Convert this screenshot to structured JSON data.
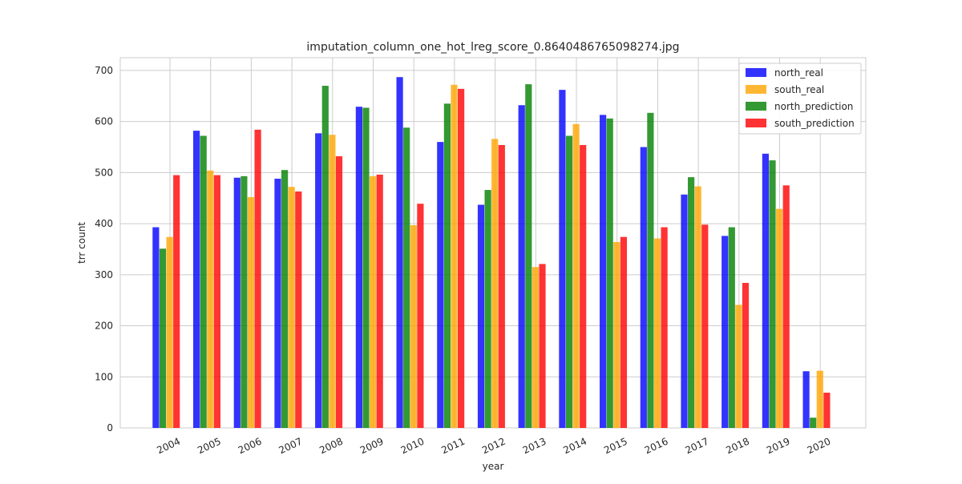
{
  "chart_data": {
    "type": "bar",
    "title": "imputation_column_one_hot_lreg_score_0.8640486765098274.jpg",
    "xlabel": "year",
    "ylabel": "trr count",
    "ylim": [
      0,
      725
    ],
    "yticks": [
      0,
      100,
      200,
      300,
      400,
      500,
      600,
      700
    ],
    "grid": true,
    "legend_position": "top-right",
    "categories": [
      "2004",
      "2005",
      "2006",
      "2007",
      "2008",
      "2009",
      "2010",
      "2011",
      "2012",
      "2013",
      "2014",
      "2015",
      "2016",
      "2017",
      "2018",
      "2019",
      "2020"
    ],
    "series": [
      {
        "name": "north_real",
        "color": "#0000ff",
        "values": [
          393,
          582,
          490,
          488,
          577,
          629,
          687,
          560,
          437,
          632,
          662,
          613,
          550,
          457,
          376,
          537,
          111
        ]
      },
      {
        "name": "north_prediction",
        "color": "#008000",
        "values": [
          351,
          572,
          493,
          505,
          670,
          627,
          588,
          635,
          466,
          673,
          572,
          606,
          617,
          491,
          393,
          524,
          20
        ]
      },
      {
        "name": "south_real",
        "color": "#ffa500",
        "values": [
          374,
          504,
          452,
          472,
          574,
          493,
          397,
          672,
          566,
          315,
          595,
          364,
          371,
          473,
          241,
          429,
          112
        ]
      },
      {
        "name": "south_prediction",
        "color": "#ff0000",
        "values": [
          495,
          495,
          584,
          463,
          532,
          496,
          439,
          664,
          554,
          321,
          554,
          374,
          393,
          398,
          284,
          475,
          69
        ]
      }
    ],
    "legend_order": [
      "north_real",
      "south_real",
      "north_prediction",
      "south_prediction"
    ]
  }
}
